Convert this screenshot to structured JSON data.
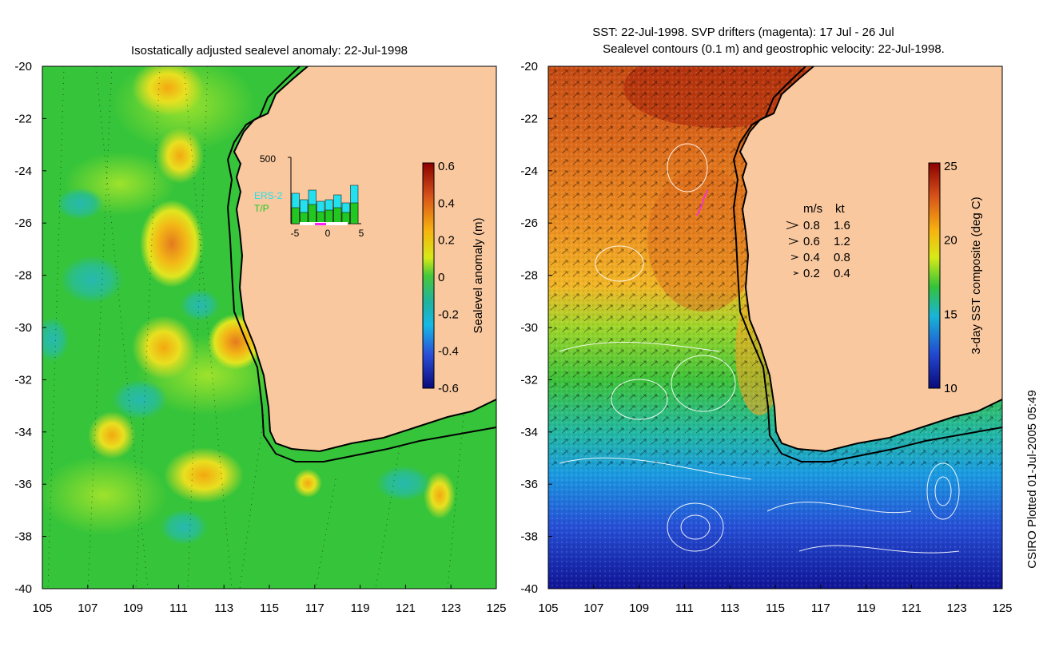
{
  "left_panel": {
    "title": "Isostatically adjusted sealevel anomaly: 22-Jul-1998",
    "y_ticks": [
      "-20",
      "-22",
      "-24",
      "-26",
      "-28",
      "-30",
      "-32",
      "-34",
      "-36",
      "-38",
      "-40"
    ],
    "x_ticks": [
      "105",
      "107",
      "109",
      "111",
      "113",
      "115",
      "117",
      "119",
      "121",
      "123",
      "125"
    ],
    "colorbar": {
      "label": "Sealevel anomaly (m)",
      "ticks": [
        "0.6",
        "0.4",
        "0.2",
        "0",
        "-0.2",
        "-0.4",
        "-0.6"
      ]
    },
    "inset": {
      "top_label": "500",
      "legend_ers": "ERS-2",
      "legend_tp": "T/P",
      "x_ticks": [
        "-5",
        "0",
        "5"
      ],
      "ers_color": "#22e0ee",
      "tp_color": "#22c822"
    }
  },
  "right_panel": {
    "title_line1": "SST: 22-Jul-1998. SVP drifters (magenta): 17 Jul - 26 Jul",
    "title_line2": "Sealevel contours (0.1 m) and geostrophic velocity: 22-Jul-1998.",
    "y_ticks": [
      "-20",
      "-22",
      "-24",
      "-26",
      "-28",
      "-30",
      "-32",
      "-34",
      "-36",
      "-38",
      "-40"
    ],
    "x_ticks": [
      "105",
      "107",
      "109",
      "111",
      "113",
      "115",
      "117",
      "119",
      "121",
      "123",
      "125"
    ],
    "colorbar": {
      "label": "3-day SST composite (deg C)",
      "ticks": [
        "25",
        "20",
        "15",
        "10"
      ]
    },
    "velocity_legend": {
      "header_ms": "m/s",
      "header_kt": "kt",
      "rows": [
        {
          "ms": "0.8",
          "kt": "1.6"
        },
        {
          "ms": "0.6",
          "kt": "1.2"
        },
        {
          "ms": "0.4",
          "kt": "0.8"
        },
        {
          "ms": "0.2",
          "kt": "0.4"
        }
      ]
    }
  },
  "footer": {
    "credit": "CSIRO Plotted 01-Jul-2005 05:49"
  },
  "colors": {
    "land": "#f9c89e",
    "sla_ocean": "#33c83a",
    "coast": "#000000",
    "drifter": "#ff22ff"
  }
}
